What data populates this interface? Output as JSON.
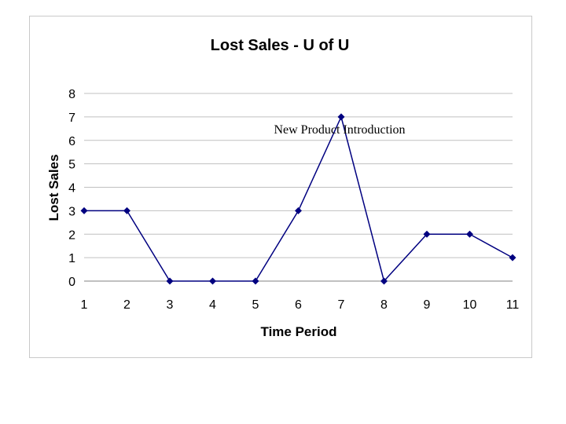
{
  "chart_data": {
    "type": "line",
    "title": "Lost Sales - U of U",
    "xlabel": "Time Period",
    "ylabel": "Lost Sales",
    "categories": [
      "1",
      "2",
      "3",
      "4",
      "5",
      "6",
      "7",
      "8",
      "9",
      "10",
      "11"
    ],
    "series": [
      {
        "values": [
          3,
          3,
          0,
          0,
          0,
          3,
          7,
          0,
          2,
          2,
          1
        ],
        "color": "#000080"
      }
    ],
    "ylim": [
      0,
      8
    ],
    "yticks": [
      "0",
      "1",
      "2",
      "3",
      "4",
      "5",
      "6",
      "7",
      "8"
    ],
    "grid": true,
    "legend": "none",
    "annotations": [
      {
        "text": "New Product Introduction",
        "near_category": "7"
      }
    ]
  }
}
